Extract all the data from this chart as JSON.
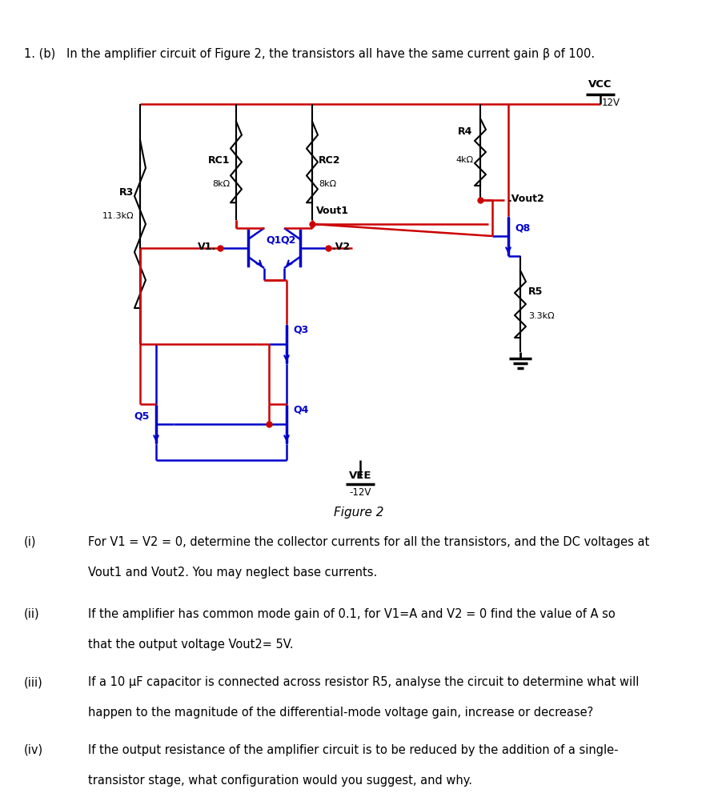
{
  "red": "#CC0000",
  "blue": "#0000CC",
  "black": "#000000",
  "bg": "#FFFFFF",
  "title": "1. (b)   In the amplifier circuit of Figure 2, the transistors all have the same current gain β of 100.",
  "caption": "Figure 2",
  "q_i_1": "For V1 = V2 = 0, determine the collector currents for all the transistors, and the DC voltages at",
  "q_i_2": "Vout1 and Vout2. You may neglect base currents.",
  "q_ii_1": "If the amplifier has common mode gain of 0.1, for V1=A and V2 = 0 find the value of A so",
  "q_ii_2": "that the output voltage Vout2= 5V.",
  "q_iii_1": "If a 10 μF capacitor is connected across resistor R5, analyse the circuit to determine what will",
  "q_iii_2": "happen to the magnitude of the differential-mode voltage gain, increase or decrease?",
  "q_iv_1": "If the output resistance of the amplifier circuit is to be reduced by the addition of a single-",
  "q_iv_2": "transistor stage, what configuration would you suggest, and why."
}
